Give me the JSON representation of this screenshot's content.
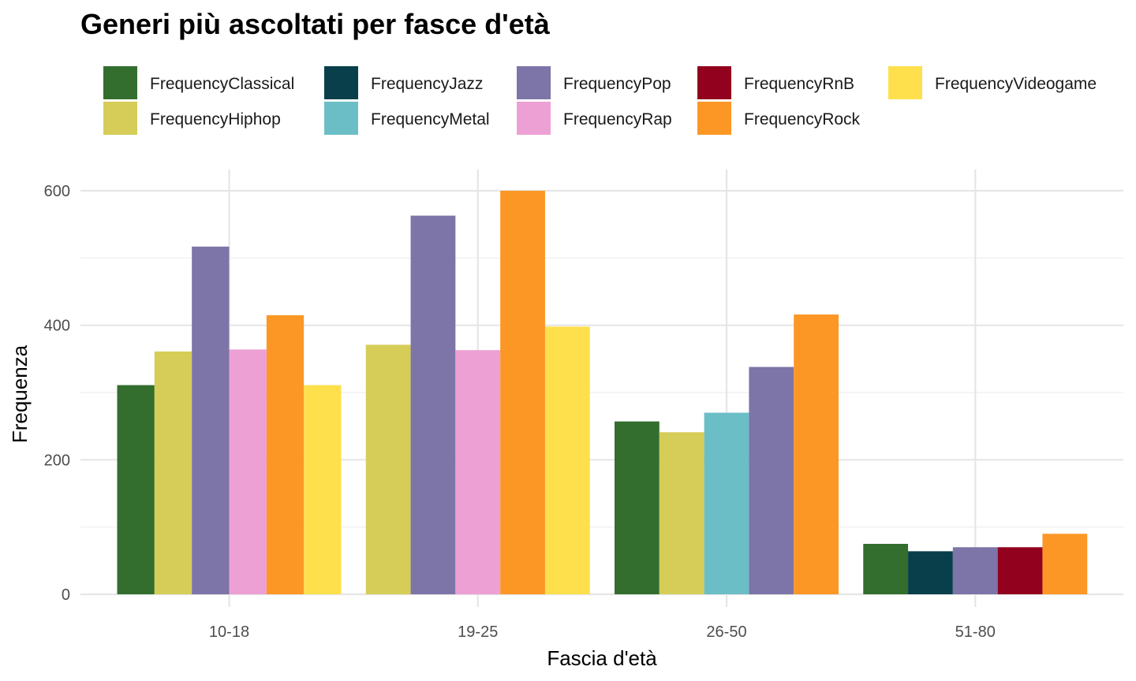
{
  "chart_data": {
    "type": "bar",
    "title": "Generi più ascoltati per fasce d'età",
    "xlabel": "Fascia d'età",
    "ylabel": "Frequenza",
    "ylim": [
      0,
      630
    ],
    "yticks": [
      0,
      200,
      400,
      600
    ],
    "grid": true,
    "legend_position": "top",
    "categories": [
      "10-18",
      "19-25",
      "26-50",
      "51-80"
    ],
    "legend_order": [
      "FrequencyClassical",
      "FrequencyJazz",
      "FrequencyPop",
      "FrequencyRnB",
      "FrequencyVideogame",
      "FrequencyHiphop",
      "FrequencyMetal",
      "FrequencyRap",
      "FrequencyRock"
    ],
    "series": [
      {
        "name": "FrequencyClassical",
        "color": "#336E2F"
      },
      {
        "name": "FrequencyJazz",
        "color": "#083F4A"
      },
      {
        "name": "FrequencyPop",
        "color": "#7D75A8"
      },
      {
        "name": "FrequencyRnB",
        "color": "#92011D"
      },
      {
        "name": "FrequencyVideogame",
        "color": "#FEE04D"
      },
      {
        "name": "FrequencyHiphop",
        "color": "#D5CD57"
      },
      {
        "name": "FrequencyMetal",
        "color": "#6CBEC6"
      },
      {
        "name": "FrequencyRap",
        "color": "#EDA0D3"
      },
      {
        "name": "FrequencyRock",
        "color": "#FC9726"
      }
    ],
    "groups": [
      {
        "category": "10-18",
        "bars": [
          {
            "series": "FrequencyClassical",
            "value": 311
          },
          {
            "series": "FrequencyHiphop",
            "value": 361
          },
          {
            "series": "FrequencyPop",
            "value": 517
          },
          {
            "series": "FrequencyRap",
            "value": 364
          },
          {
            "series": "FrequencyRock",
            "value": 415
          },
          {
            "series": "FrequencyVideogame",
            "value": 311
          }
        ]
      },
      {
        "category": "19-25",
        "bars": [
          {
            "series": "FrequencyHiphop",
            "value": 371
          },
          {
            "series": "FrequencyPop",
            "value": 563
          },
          {
            "series": "FrequencyRap",
            "value": 363
          },
          {
            "series": "FrequencyRock",
            "value": 600
          },
          {
            "series": "FrequencyVideogame",
            "value": 398
          }
        ]
      },
      {
        "category": "26-50",
        "bars": [
          {
            "series": "FrequencyClassical",
            "value": 257
          },
          {
            "series": "FrequencyHiphop",
            "value": 241
          },
          {
            "series": "FrequencyMetal",
            "value": 270
          },
          {
            "series": "FrequencyPop",
            "value": 338
          },
          {
            "series": "FrequencyRock",
            "value": 416
          }
        ]
      },
      {
        "category": "51-80",
        "bars": [
          {
            "series": "FrequencyClassical",
            "value": 75
          },
          {
            "series": "FrequencyJazz",
            "value": 64
          },
          {
            "series": "FrequencyPop",
            "value": 70
          },
          {
            "series": "FrequencyRnB",
            "value": 70
          },
          {
            "series": "FrequencyRock",
            "value": 90
          }
        ]
      }
    ]
  }
}
